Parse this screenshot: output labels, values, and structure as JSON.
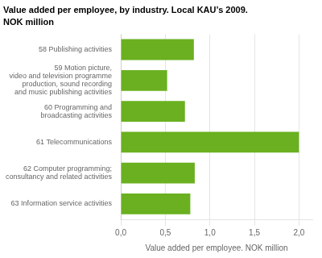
{
  "chart_data": {
    "type": "bar",
    "orientation": "horizontal",
    "title": "Value added per employee, by industry. Local KAU’s 2009.",
    "subtitle": "NOK million",
    "xlabel": "Value added per employee. NOK million",
    "categories": [
      "63 Information service activities",
      "62 Computer programming;\nconsultancy and related activities",
      "61 Telecommunications",
      "60 Programming and\nbroadcasting activities",
      "59 Motion picture,\nvideo and television programme\nproduction, sound recording\nand music publishing activities",
      "58 Publishing activities"
    ],
    "values": [
      0.78,
      0.83,
      2.0,
      0.72,
      0.52,
      0.82
    ],
    "color": "#6ab020",
    "xlim": [
      0,
      2.15
    ],
    "xticks": [
      {
        "value": 0.0,
        "label": "0,0"
      },
      {
        "value": 0.5,
        "label": "0,5"
      },
      {
        "value": 1.0,
        "label": "1,0"
      },
      {
        "value": 1.5,
        "label": "1,5"
      },
      {
        "value": 2.0,
        "label": "2,0"
      }
    ],
    "grid": true
  }
}
